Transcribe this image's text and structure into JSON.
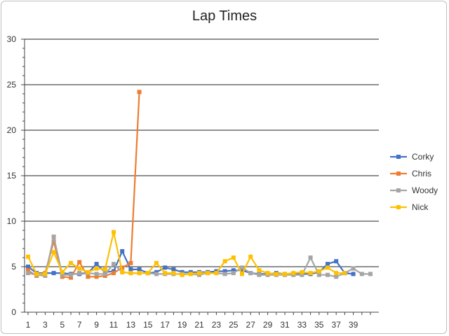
{
  "chart_data": {
    "type": "line",
    "title": "Lap Times",
    "xlabel": "",
    "ylabel": "",
    "ylim": [
      0,
      30
    ],
    "yticks": [
      0,
      5,
      10,
      15,
      20,
      25,
      30
    ],
    "xlim": [
      1,
      41
    ],
    "xticks": [
      1,
      3,
      5,
      7,
      9,
      11,
      13,
      15,
      17,
      19,
      21,
      23,
      25,
      27,
      29,
      31,
      33,
      35,
      37,
      39
    ],
    "grid": "horizontal",
    "legend_position": "right",
    "series": [
      {
        "name": "Corky",
        "color": "#4472C4",
        "marker": "square",
        "values": [
          5.0,
          4.3,
          4.3,
          4.3,
          4.3,
          4.2,
          4.2,
          4.3,
          5.3,
          4.4,
          4.5,
          6.7,
          4.7,
          4.7,
          4.3,
          4.4,
          4.9,
          4.7,
          4.4,
          4.4,
          4.4,
          4.4,
          4.5,
          4.5,
          4.6,
          4.6,
          4.3,
          4.2,
          4.2,
          4.3,
          4.2,
          4.2,
          4.2,
          4.2,
          4.4,
          5.3,
          5.6,
          4.3,
          4.2
        ]
      },
      {
        "name": "Chris",
        "color": "#ED7D31",
        "marker": "square",
        "values": [
          4.6,
          4.0,
          4.3,
          7.8,
          3.9,
          3.8,
          5.5,
          3.9,
          3.9,
          4.0,
          4.3,
          4.9,
          5.4,
          24.2
        ]
      },
      {
        "name": "Woody",
        "color": "#A5A5A5",
        "marker": "square",
        "values": [
          4.3,
          4.1,
          4.0,
          8.3,
          4.1,
          4.1,
          4.3,
          4.3,
          4.2,
          4.2,
          5.3,
          4.4,
          4.3,
          4.3,
          4.3,
          4.2,
          4.2,
          4.2,
          4.2,
          4.2,
          4.1,
          4.3,
          4.3,
          4.2,
          4.3,
          4.9,
          4.3,
          4.1,
          4.1,
          4.1,
          4.1,
          4.1,
          4.1,
          6.0,
          4.1,
          4.1,
          3.9,
          4.3,
          4.8,
          4.2,
          4.2
        ]
      },
      {
        "name": "Nick",
        "color": "#FFC000",
        "marker": "square",
        "values": [
          6.1,
          4.2,
          4.2,
          6.6,
          4.4,
          5.4,
          4.8,
          4.4,
          4.8,
          4.7,
          8.8,
          4.4,
          4.3,
          4.3,
          4.3,
          5.4,
          4.3,
          4.3,
          4.1,
          4.2,
          4.3,
          4.3,
          4.3,
          5.6,
          6.0,
          4.2,
          6.1,
          4.6,
          4.3,
          4.2,
          4.2,
          4.3,
          4.4,
          4.3,
          4.5,
          4.9,
          4.3,
          4.3
        ]
      }
    ]
  }
}
